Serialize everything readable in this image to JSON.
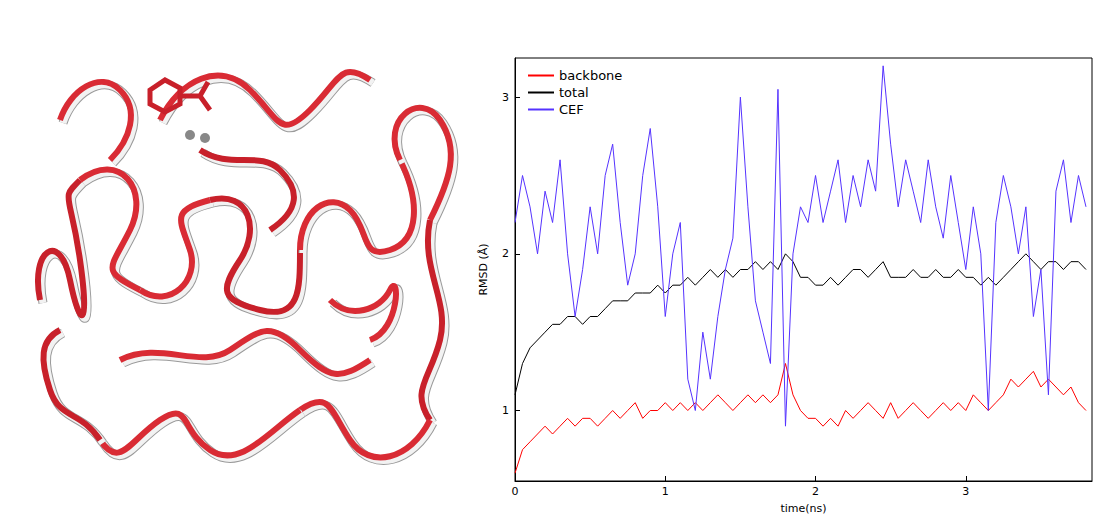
{
  "chart_data": {
    "type": "line",
    "x_label": "time(ns)",
    "y_label": "RMSD (Å)",
    "x": [
      0,
      0.05,
      0.1,
      0.15,
      0.2,
      0.25,
      0.3,
      0.35,
      0.4,
      0.45,
      0.5,
      0.55,
      0.6,
      0.65,
      0.7,
      0.75,
      0.8,
      0.85,
      0.9,
      0.95,
      1.0,
      1.05,
      1.1,
      1.15,
      1.2,
      1.25,
      1.3,
      1.35,
      1.4,
      1.45,
      1.5,
      1.55,
      1.6,
      1.65,
      1.7,
      1.75,
      1.8,
      1.85,
      1.9,
      1.95,
      2.0,
      2.05,
      2.1,
      2.15,
      2.2,
      2.25,
      2.3,
      2.35,
      2.4,
      2.45,
      2.5,
      2.55,
      2.6,
      2.65,
      2.7,
      2.75,
      2.8,
      2.85,
      2.9,
      2.95,
      3.0,
      3.05,
      3.1,
      3.15,
      3.2,
      3.25,
      3.3,
      3.35,
      3.4,
      3.45,
      3.5,
      3.55,
      3.6,
      3.65,
      3.7,
      3.75,
      3.8
    ],
    "series": [
      {
        "name": "backbone",
        "color": "#ff0000",
        "values": [
          0.6,
          0.75,
          0.8,
          0.85,
          0.9,
          0.85,
          0.9,
          0.95,
          0.9,
          0.95,
          0.95,
          0.9,
          0.95,
          1.0,
          0.95,
          1.0,
          1.05,
          0.95,
          1.0,
          1.0,
          1.05,
          1.0,
          1.05,
          1.0,
          1.05,
          1.0,
          1.05,
          1.1,
          1.05,
          1.0,
          1.05,
          1.1,
          1.05,
          1.1,
          1.05,
          1.1,
          1.3,
          1.1,
          1.0,
          0.95,
          0.95,
          0.9,
          0.95,
          0.9,
          1.0,
          0.95,
          1.0,
          1.05,
          1.0,
          0.95,
          1.05,
          0.95,
          1.0,
          1.05,
          1.0,
          0.95,
          1.0,
          1.05,
          1.0,
          1.05,
          1.0,
          1.1,
          1.05,
          1.0,
          1.05,
          1.1,
          1.2,
          1.15,
          1.2,
          1.25,
          1.15,
          1.2,
          1.15,
          1.1,
          1.15,
          1.05,
          1.0
        ]
      },
      {
        "name": "total",
        "color": "#000000",
        "values": [
          1.1,
          1.3,
          1.4,
          1.45,
          1.5,
          1.55,
          1.55,
          1.6,
          1.6,
          1.55,
          1.6,
          1.6,
          1.65,
          1.7,
          1.7,
          1.7,
          1.75,
          1.75,
          1.75,
          1.8,
          1.75,
          1.8,
          1.8,
          1.85,
          1.8,
          1.85,
          1.9,
          1.85,
          1.9,
          1.85,
          1.9,
          1.9,
          1.95,
          1.9,
          1.95,
          1.9,
          2.0,
          1.95,
          1.85,
          1.85,
          1.8,
          1.8,
          1.85,
          1.8,
          1.85,
          1.9,
          1.9,
          1.85,
          1.9,
          1.95,
          1.85,
          1.85,
          1.85,
          1.9,
          1.85,
          1.85,
          1.9,
          1.85,
          1.85,
          1.9,
          1.85,
          1.85,
          1.8,
          1.85,
          1.8,
          1.85,
          1.9,
          1.95,
          2.0,
          1.95,
          1.9,
          1.95,
          1.95,
          1.9,
          1.95,
          1.95,
          1.9
        ]
      },
      {
        "name": "CEF",
        "color": "#5533ff",
        "values": [
          2.2,
          2.5,
          2.3,
          2.0,
          2.4,
          2.2,
          2.6,
          2.0,
          1.6,
          1.9,
          2.3,
          2.0,
          2.5,
          2.7,
          2.2,
          1.8,
          2.0,
          2.5,
          2.8,
          2.3,
          1.6,
          2.0,
          2.2,
          1.2,
          1.0,
          1.5,
          1.2,
          1.6,
          1.9,
          2.1,
          3.0,
          2.3,
          1.7,
          1.5,
          1.3,
          3.05,
          0.9,
          2.0,
          2.3,
          2.2,
          2.5,
          2.2,
          2.4,
          2.6,
          2.2,
          2.5,
          2.3,
          2.6,
          2.4,
          3.2,
          2.7,
          2.3,
          2.6,
          2.4,
          2.2,
          2.6,
          2.3,
          2.1,
          2.5,
          2.2,
          1.9,
          2.3,
          2.0,
          1.0,
          2.2,
          2.5,
          2.3,
          2.0,
          2.3,
          1.6,
          1.9,
          1.1,
          2.4,
          2.6,
          2.2,
          2.5,
          2.3
        ]
      }
    ],
    "xlim": [
      0,
      3.84
    ],
    "xticks": [
      0,
      1,
      2,
      3
    ],
    "ylim": [
      0.55,
      3.25
    ],
    "yticks": [
      1,
      2,
      3
    ],
    "legend": "upper left",
    "grid": false
  }
}
